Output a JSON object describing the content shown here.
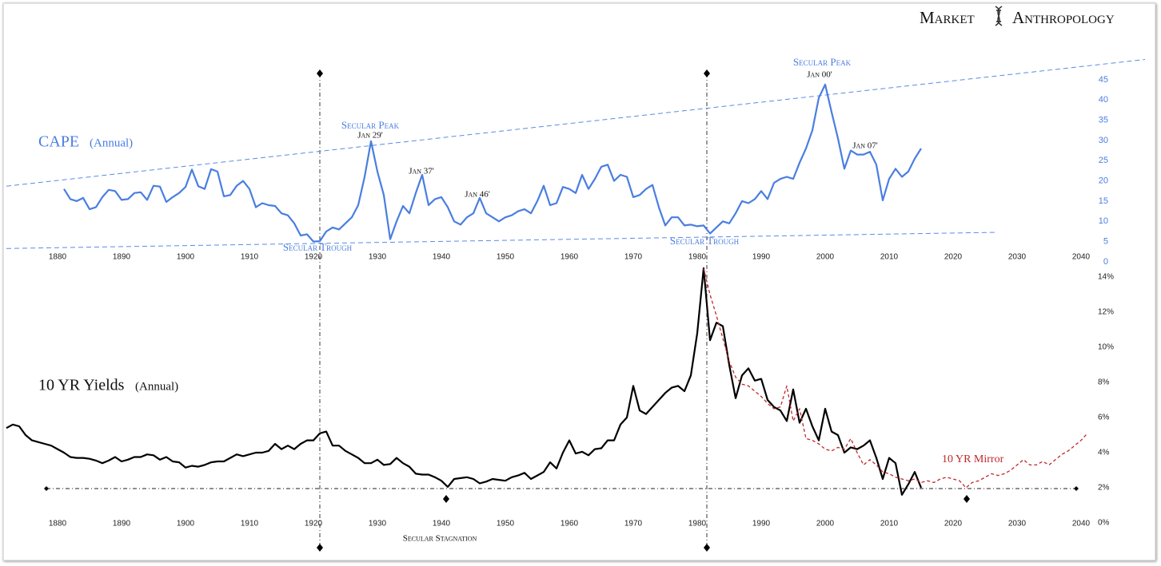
{
  "header": {
    "brand_left": "Market",
    "brand_right": "Anthropology"
  },
  "chart_data": [
    {
      "type": "line",
      "title": "CAPE",
      "subtitle": "(Annual)",
      "annotations": [
        "Secular Peak",
        "Jan 29'",
        "Jan 37'",
        "Jan 46'",
        "Secular Trough",
        "Secular Trough",
        "Secular Peak",
        "Jan 00'",
        "Jan 07'"
      ],
      "xlim": [
        1872,
        2051
      ],
      "ylim": [
        0,
        50
      ],
      "xticks": [
        1880,
        1890,
        1900,
        1910,
        1920,
        1930,
        1940,
        1950,
        1960,
        1970,
        1980,
        1990,
        2000,
        2010,
        2020,
        2030,
        2040
      ],
      "yticks": [
        0,
        5,
        10,
        15,
        20,
        25,
        30,
        35,
        40,
        45
      ],
      "trendlines": [
        {
          "x": [
            1872,
            2050
          ],
          "values": [
            18.7,
            50
          ],
          "color": "#5b8ae6"
        },
        {
          "x": [
            1872,
            2027
          ],
          "values": [
            3.3,
            7.3
          ],
          "color": "#5b8ae6"
        }
      ],
      "series": [
        {
          "color": "#4a7ee0",
          "x": [
            1881,
            1882,
            1883,
            1884,
            1885,
            1886,
            1887,
            1888,
            1889,
            1890,
            1891,
            1892,
            1893,
            1894,
            1895,
            1896,
            1897,
            1898,
            1899,
            1900,
            1901,
            1902,
            1903,
            1904,
            1905,
            1906,
            1907,
            1908,
            1909,
            1910,
            1911,
            1912,
            1913,
            1914,
            1915,
            1916,
            1917,
            1918,
            1919,
            1920,
            1921,
            1922,
            1923,
            1924,
            1925,
            1926,
            1927,
            1928,
            1929,
            1930,
            1931,
            1932,
            1933,
            1934,
            1935,
            1936,
            1937,
            1938,
            1939,
            1940,
            1941,
            1942,
            1943,
            1944,
            1945,
            1946,
            1947,
            1948,
            1949,
            1950,
            1951,
            1952,
            1953,
            1954,
            1955,
            1956,
            1957,
            1958,
            1959,
            1960,
            1961,
            1962,
            1963,
            1964,
            1965,
            1966,
            1967,
            1968,
            1969,
            1970,
            1971,
            1972,
            1973,
            1974,
            1975,
            1976,
            1977,
            1978,
            1979,
            1980,
            1981,
            1982,
            1983,
            1984,
            1985,
            1986,
            1987,
            1988,
            1989,
            1990,
            1991,
            1992,
            1993,
            1994,
            1995,
            1996,
            1997,
            1998,
            1999,
            2000,
            2001,
            2002,
            2003,
            2004,
            2005,
            2006,
            2007,
            2008,
            2009,
            2010,
            2011,
            2012,
            2013,
            2014,
            2015
          ],
          "values": [
            18.0,
            15.5,
            15.0,
            15.8,
            13.0,
            13.5,
            16.0,
            17.8,
            17.5,
            15.3,
            15.5,
            17.0,
            17.2,
            15.3,
            18.8,
            18.6,
            14.8,
            16.0,
            17.0,
            18.5,
            22.8,
            18.7,
            18.0,
            22.9,
            22.3,
            16.2,
            16.5,
            18.8,
            20.0,
            18.0,
            13.5,
            14.5,
            14.0,
            13.8,
            12.0,
            11.5,
            9.5,
            6.5,
            6.8,
            5.0,
            5.1,
            7.5,
            8.5,
            8.0,
            9.5,
            11.0,
            14.0,
            21.0,
            29.8,
            22.3,
            16.5,
            5.6,
            10.0,
            13.8,
            12.0,
            17.0,
            21.5,
            14.0,
            15.5,
            16.0,
            13.5,
            10.0,
            9.2,
            11.0,
            12.0,
            15.8,
            12.0,
            11.0,
            10.0,
            11.0,
            11.5,
            12.5,
            13.0,
            12.0,
            15.0,
            18.8,
            14.0,
            14.5,
            18.5,
            18.0,
            17.0,
            21.5,
            18.0,
            20.5,
            23.5,
            24.0,
            20.0,
            21.5,
            21.0,
            16.0,
            16.5,
            18.0,
            19.0,
            13.5,
            9.0,
            11.0,
            11.0,
            9.0,
            9.2,
            8.8,
            9.0,
            7.0,
            8.5,
            10.0,
            9.5,
            12.0,
            15.0,
            14.5,
            15.5,
            17.5,
            15.5,
            19.5,
            20.5,
            21.0,
            20.5,
            24.5,
            28.0,
            32.5,
            40.5,
            43.8,
            37.0,
            30.5,
            23.0,
            27.5,
            26.5,
            26.5,
            27.2,
            24.0,
            15.2,
            20.5,
            23.0,
            21.0,
            22.3,
            25.5,
            28.0
          ]
        }
      ]
    },
    {
      "type": "line",
      "title": "10 YR Yields",
      "subtitle": "(Annual)",
      "annotations": [
        "Secular Stagnation"
      ],
      "xlim": [
        1872,
        2051
      ],
      "ylim": [
        0,
        15
      ],
      "xticks": [
        1880,
        1890,
        1900,
        1910,
        1920,
        1930,
        1940,
        1950,
        1960,
        1970,
        1980,
        1990,
        2000,
        2010,
        2020,
        2030,
        2040
      ],
      "yticks": [
        {
          "value": 0,
          "label": "0%"
        },
        {
          "value": 2,
          "label": "2%"
        },
        {
          "value": 4,
          "label": "4%"
        },
        {
          "value": 6,
          "label": "6%"
        },
        {
          "value": 8,
          "label": "8%"
        },
        {
          "value": 10,
          "label": "10%"
        },
        {
          "value": 12,
          "label": "12%"
        },
        {
          "value": 14,
          "label": "14%"
        }
      ],
      "series": [
        {
          "color": "#000000",
          "x": [
            1872,
            1873,
            1874,
            1875,
            1876,
            1877,
            1878,
            1879,
            1880,
            1881,
            1882,
            1883,
            1884,
            1885,
            1886,
            1887,
            1888,
            1889,
            1890,
            1891,
            1892,
            1893,
            1894,
            1895,
            1896,
            1897,
            1898,
            1899,
            1900,
            1901,
            1902,
            1903,
            1904,
            1905,
            1906,
            1907,
            1908,
            1909,
            1910,
            1911,
            1912,
            1913,
            1914,
            1915,
            1916,
            1917,
            1918,
            1919,
            1920,
            1921,
            1922,
            1923,
            1924,
            1925,
            1926,
            1927,
            1928,
            1929,
            1930,
            1931,
            1932,
            1933,
            1934,
            1935,
            1936,
            1937,
            1938,
            1939,
            1940,
            1941,
            1942,
            1943,
            1944,
            1945,
            1946,
            1947,
            1948,
            1949,
            1950,
            1951,
            1952,
            1953,
            1954,
            1955,
            1956,
            1957,
            1958,
            1959,
            1960,
            1961,
            1962,
            1963,
            1964,
            1965,
            1966,
            1967,
            1968,
            1969,
            1970,
            1971,
            1972,
            1973,
            1974,
            1975,
            1976,
            1977,
            1978,
            1979,
            1980,
            1981,
            1982,
            1983,
            1984,
            1985,
            1986,
            1987,
            1988,
            1989,
            1990,
            1991,
            1992,
            1993,
            1994,
            1995,
            1996,
            1997,
            1998,
            1999,
            2000,
            2001,
            2002,
            2003,
            2004,
            2005,
            2006,
            2007,
            2008,
            2009,
            2010,
            2011,
            2012,
            2013,
            2014,
            2015
          ],
          "values": [
            5.4,
            5.6,
            5.5,
            5.0,
            4.7,
            4.6,
            4.5,
            4.4,
            4.2,
            4.0,
            3.75,
            3.7,
            3.7,
            3.65,
            3.55,
            3.4,
            3.55,
            3.75,
            3.5,
            3.6,
            3.75,
            3.75,
            3.9,
            3.85,
            3.6,
            3.75,
            3.5,
            3.45,
            3.15,
            3.25,
            3.2,
            3.3,
            3.45,
            3.5,
            3.5,
            3.7,
            3.9,
            3.8,
            3.9,
            4.0,
            4.0,
            4.1,
            4.5,
            4.2,
            4.4,
            4.2,
            4.5,
            4.7,
            4.7,
            5.1,
            5.2,
            4.4,
            4.4,
            4.1,
            3.9,
            3.7,
            3.4,
            3.4,
            3.6,
            3.3,
            3.35,
            3.7,
            3.4,
            3.2,
            2.8,
            2.75,
            2.75,
            2.6,
            2.4,
            2.05,
            2.5,
            2.55,
            2.6,
            2.5,
            2.25,
            2.35,
            2.5,
            2.45,
            2.4,
            2.6,
            2.7,
            2.85,
            2.5,
            2.7,
            2.9,
            3.45,
            3.1,
            4.0,
            4.7,
            3.95,
            4.05,
            3.85,
            4.2,
            4.25,
            4.7,
            4.7,
            5.6,
            6.0,
            7.8,
            6.4,
            6.2,
            6.6,
            7.0,
            7.4,
            7.7,
            7.8,
            7.5,
            8.4,
            10.8,
            14.5,
            10.4,
            11.4,
            11.2,
            9.0,
            7.1,
            8.4,
            8.8,
            8.1,
            8.2,
            7.0,
            6.6,
            6.4,
            5.8,
            7.6,
            5.7,
            6.5,
            5.5,
            4.7,
            6.5,
            5.2,
            5.0,
            4.0,
            4.3,
            4.2,
            4.4,
            4.7,
            3.7,
            2.5,
            3.7,
            3.4,
            1.6,
            2.2,
            2.9,
            2.0
          ]
        },
        {
          "name": "10 YR Mirror",
          "color": "#c0282d",
          "dashed": true,
          "x": [
            1981,
            1982,
            1983,
            1984,
            1985,
            1986,
            1987,
            1988,
            1989,
            1990,
            1991,
            1992,
            1993,
            1994,
            1995,
            1996,
            1997,
            1998,
            1999,
            2000,
            2001,
            2002,
            2003,
            2004,
            2005,
            2006,
            2007,
            2008,
            2009,
            2010,
            2011,
            2012,
            2013,
            2014,
            2015,
            2016,
            2017,
            2018,
            2019,
            2020,
            2021,
            2022,
            2023,
            2024,
            2025,
            2026,
            2027,
            2028,
            2029,
            2030,
            2031,
            2032,
            2033,
            2034,
            2035,
            2036,
            2037,
            2038,
            2039,
            2040,
            2041
          ],
          "values": [
            14.5,
            13.0,
            11.8,
            10.5,
            9.2,
            8.3,
            7.9,
            7.8,
            7.5,
            7.2,
            6.8,
            6.5,
            6.6,
            7.8,
            5.8,
            6.5,
            4.8,
            4.7,
            4.5,
            4.2,
            4.1,
            4.3,
            4.2,
            4.8,
            4.0,
            3.3,
            3.6,
            3.3,
            2.9,
            2.8,
            2.6,
            2.5,
            2.4,
            2.5,
            2.3,
            2.4,
            2.3,
            2.5,
            2.6,
            2.5,
            2.4,
            2.0,
            2.3,
            2.4,
            2.6,
            2.8,
            2.7,
            2.8,
            3.0,
            3.3,
            3.6,
            3.3,
            3.3,
            3.5,
            3.3,
            3.6,
            3.9,
            4.1,
            4.4,
            4.7,
            5.1
          ]
        }
      ]
    }
  ]
}
